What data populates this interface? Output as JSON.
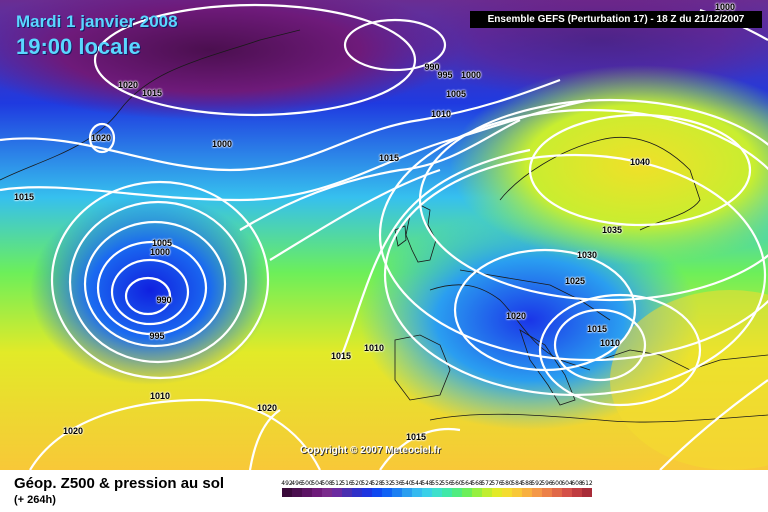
{
  "title": {
    "line1": "Mardi 1 janvier 2008",
    "line2": "19:00 locale"
  },
  "run_info": "Ensemble GEFS (Perturbation 17)  -  18 Z du 21/12/2007",
  "copyright": "Copyright © 2007 Meteociel.fr",
  "footer": {
    "title": "Géop. Z500 & pression au sol",
    "subtitle": "(+ 264h)"
  },
  "scale": {
    "values": [
      "492",
      "496",
      "500",
      "504",
      "508",
      "512",
      "516",
      "520",
      "524",
      "528",
      "532",
      "536",
      "540",
      "544",
      "548",
      "552",
      "556",
      "560",
      "564",
      "568",
      "572",
      "576",
      "580",
      "584",
      "588",
      "592",
      "596",
      "600",
      "604",
      "608",
      "612"
    ],
    "colors": [
      "#3a0a3a",
      "#4b0f4f",
      "#5c1464",
      "#6e1a7a",
      "#7a2a8c",
      "#6b2aa0",
      "#4a2fb0",
      "#3030c8",
      "#1f35e0",
      "#1048f0",
      "#1062f5",
      "#1c7ff2",
      "#2a9ef0",
      "#35baf0",
      "#3ad0e8",
      "#3ee0cc",
      "#40e8a8",
      "#50ec80",
      "#6cef5a",
      "#96f040",
      "#c0ee30",
      "#e2ea28",
      "#f4dc30",
      "#f8c838",
      "#f8b040",
      "#f49848",
      "#ec8048",
      "#e06848",
      "#d45048",
      "#c03c40",
      "#a82c38"
    ]
  },
  "isobar_labels": [
    {
      "text": "1020"
    },
    {
      "text": "1015"
    },
    {
      "text": "1020"
    },
    {
      "text": "1000"
    },
    {
      "text": "990"
    },
    {
      "text": "995"
    },
    {
      "text": "1000"
    },
    {
      "text": "1005"
    },
    {
      "text": "1010"
    },
    {
      "text": "1015"
    },
    {
      "text": "1015"
    },
    {
      "text": "1005"
    },
    {
      "text": "1000"
    },
    {
      "text": "990"
    },
    {
      "text": "995"
    },
    {
      "text": "1015"
    },
    {
      "text": "1010"
    },
    {
      "text": "1010"
    },
    {
      "text": "1020"
    },
    {
      "text": "1020"
    },
    {
      "text": "1040"
    },
    {
      "text": "1035"
    },
    {
      "text": "1030"
    },
    {
      "text": "1025"
    },
    {
      "text": "1020"
    },
    {
      "text": "1015"
    },
    {
      "text": "1010"
    },
    {
      "text": "1015"
    },
    {
      "text": "1000"
    }
  ],
  "colors": {
    "title": "#5ad7ff",
    "run_box_bg": "#000000",
    "run_box_text": "#ffffff",
    "isobar": "#ffffff"
  }
}
